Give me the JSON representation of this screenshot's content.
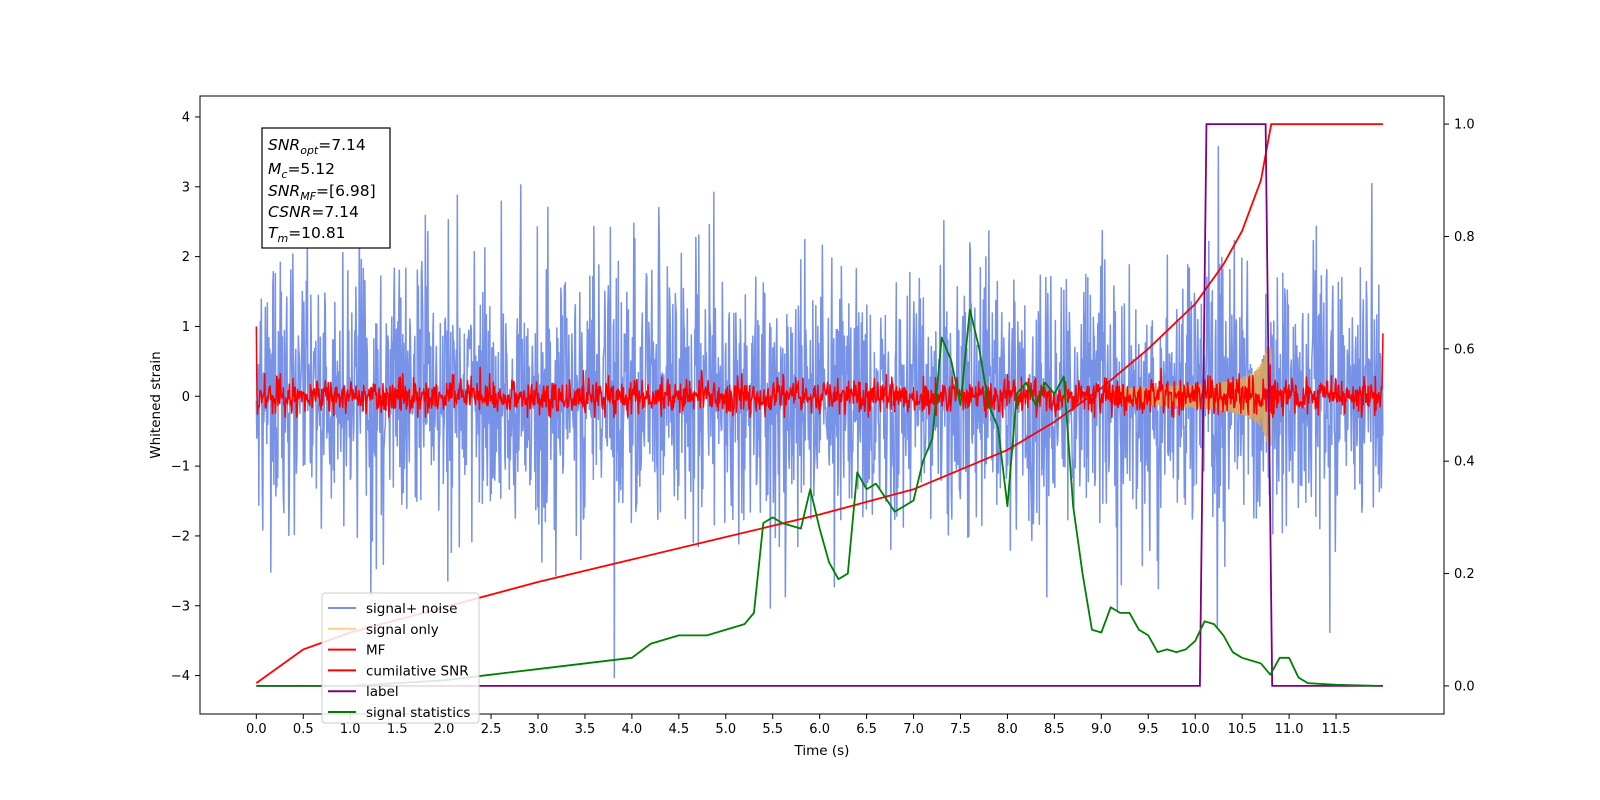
{
  "chart_data": {
    "type": "line",
    "xlabel": "Time (s)",
    "ylabel": "Whitened strain",
    "xlim": [
      -0.6,
      12.65
    ],
    "ylim": [
      -4.55,
      4.3
    ],
    "y2lim": [
      -0.05,
      1.05
    ],
    "xticks": [
      "0.0",
      "0.5",
      "1.0",
      "1.5",
      "2.0",
      "2.5",
      "3.0",
      "3.5",
      "4.0",
      "4.5",
      "5.0",
      "5.5",
      "6.0",
      "6.5",
      "7.0",
      "7.5",
      "8.0",
      "8.5",
      "9.0",
      "9.5",
      "10.0",
      "10.5",
      "11.0",
      "11.5"
    ],
    "yticks": [
      "4",
      "3",
      "2",
      "1",
      "0",
      "−1",
      "−2",
      "−3",
      "−4"
    ],
    "y2ticks": [
      "1.0",
      "0.8",
      "0.6",
      "0.4",
      "0.2",
      "0.0"
    ],
    "annotation": {
      "snr_opt": {
        "sym": "SNR",
        "sub": "opt",
        "val": "=7.14"
      },
      "mc": {
        "sym": "M",
        "sub": "c",
        "val": "=5.12"
      },
      "snr_mf": {
        "sym": "SNR",
        "sub": "MF",
        "val": "=[6.98]"
      },
      "csnr": {
        "sym": "CSNR",
        "sub": "",
        "val": "=7.14"
      },
      "tm": {
        "sym": "T",
        "sub": "m",
        "val": "=10.81"
      }
    },
    "legend": {
      "placement": "lower-left",
      "entries": [
        {
          "label": "signal+ noise",
          "color": "#7892e8"
        },
        {
          "label": "signal only",
          "color": "#ffd27f"
        },
        {
          "label": "MF",
          "color": "#ff0000"
        },
        {
          "label": "cumilative SNR",
          "color": "#ff0000"
        },
        {
          "label": "label",
          "color": "#7f007f"
        },
        {
          "label": "signal statistics",
          "color": "#007f00"
        }
      ]
    },
    "series": [
      {
        "name": "signal+ noise",
        "axis": "left",
        "color": "#7892e8",
        "x_range": [
          0.0,
          12.0
        ],
        "approx_std": 0.95,
        "approx_range": [
          -4.15,
          3.9
        ]
      },
      {
        "name": "signal only",
        "axis": "left",
        "color": "#ffd27f",
        "x_range": [
          9.1,
          10.81
        ],
        "approx_peak_amplitude": 0.65
      },
      {
        "name": "MF",
        "axis": "left",
        "color": "#ff0000",
        "x_range": [
          0.0,
          12.0
        ],
        "approx_std": 0.13,
        "endpoints": [
          1.0,
          0.9
        ]
      },
      {
        "name": "cumilative SNR",
        "axis": "right",
        "color": "#ff0000",
        "x": [
          0.0,
          0.5,
          1.0,
          2.0,
          3.0,
          4.0,
          5.0,
          6.0,
          7.0,
          8.0,
          8.5,
          9.0,
          9.5,
          10.0,
          10.3,
          10.5,
          10.7,
          10.81,
          11.0,
          12.0
        ],
        "values": [
          0.005,
          0.065,
          0.095,
          0.14,
          0.185,
          0.225,
          0.265,
          0.305,
          0.35,
          0.42,
          0.47,
          0.53,
          0.6,
          0.68,
          0.75,
          0.81,
          0.9,
          1.0,
          1.0,
          1.0
        ]
      },
      {
        "name": "label",
        "axis": "right",
        "color": "#7f007f",
        "x": [
          0.0,
          10.05,
          10.12,
          10.75,
          10.82,
          12.0
        ],
        "values": [
          0.0,
          0.0,
          1.0,
          1.0,
          0.0,
          0.0
        ]
      },
      {
        "name": "signal statistics",
        "axis": "right",
        "color": "#007f00",
        "x": [
          0.0,
          1.0,
          1.5,
          2.0,
          2.5,
          3.0,
          3.5,
          4.0,
          4.2,
          4.5,
          4.8,
          5.0,
          5.2,
          5.3,
          5.4,
          5.5,
          5.6,
          5.8,
          5.9,
          6.0,
          6.1,
          6.2,
          6.3,
          6.4,
          6.5,
          6.6,
          6.8,
          7.0,
          7.1,
          7.2,
          7.3,
          7.4,
          7.5,
          7.6,
          7.7,
          7.8,
          7.9,
          8.0,
          8.1,
          8.2,
          8.3,
          8.4,
          8.5,
          8.6,
          8.7,
          8.8,
          8.9,
          9.0,
          9.1,
          9.2,
          9.3,
          9.4,
          9.5,
          9.6,
          9.7,
          9.8,
          9.9,
          10.0,
          10.1,
          10.2,
          10.3,
          10.4,
          10.5,
          10.6,
          10.7,
          10.8,
          10.9,
          11.0,
          11.1,
          11.2,
          11.5,
          11.95
        ],
        "values": [
          0.0,
          0.0,
          0.005,
          0.01,
          0.02,
          0.03,
          0.04,
          0.05,
          0.075,
          0.09,
          0.09,
          0.1,
          0.11,
          0.13,
          0.29,
          0.3,
          0.29,
          0.28,
          0.35,
          0.28,
          0.22,
          0.19,
          0.2,
          0.38,
          0.35,
          0.36,
          0.31,
          0.33,
          0.4,
          0.44,
          0.62,
          0.58,
          0.5,
          0.67,
          0.6,
          0.5,
          0.46,
          0.32,
          0.52,
          0.54,
          0.5,
          0.54,
          0.52,
          0.55,
          0.32,
          0.2,
          0.1,
          0.095,
          0.14,
          0.13,
          0.13,
          0.1,
          0.09,
          0.06,
          0.065,
          0.06,
          0.065,
          0.08,
          0.115,
          0.11,
          0.09,
          0.06,
          0.05,
          0.045,
          0.04,
          0.02,
          0.05,
          0.05,
          0.015,
          0.005,
          0.002,
          0.0
        ]
      }
    ]
  }
}
